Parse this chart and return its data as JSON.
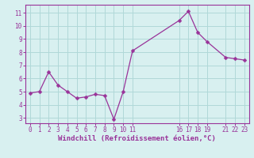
{
  "x_values": [
    0,
    1,
    2,
    3,
    4,
    5,
    6,
    7,
    8,
    9,
    10,
    11,
    16,
    17,
    18,
    19,
    21,
    22,
    23
  ],
  "y_values": [
    4.9,
    5.0,
    6.5,
    5.5,
    5.0,
    4.5,
    4.6,
    4.8,
    4.7,
    2.9,
    5.0,
    8.1,
    10.4,
    11.1,
    9.5,
    8.8,
    7.6,
    7.5,
    7.4
  ],
  "line_color": "#993399",
  "marker_color": "#993399",
  "bg_color": "#d8f0f0",
  "grid_color": "#b0d8d8",
  "xlabel": "Windchill (Refroidissement éolien,°C)",
  "xlabel_color": "#993399",
  "tick_color": "#993399",
  "spine_color": "#993399",
  "ylim": [
    2.6,
    11.6
  ],
  "xlim": [
    -0.5,
    23.5
  ],
  "yticks": [
    3,
    4,
    5,
    6,
    7,
    8,
    9,
    10,
    11
  ],
  "xticks": [
    0,
    1,
    2,
    3,
    4,
    5,
    6,
    7,
    8,
    9,
    10,
    11,
    16,
    17,
    18,
    19,
    21,
    22,
    23
  ],
  "tick_fontsize": 5.5,
  "label_fontsize": 6.5
}
